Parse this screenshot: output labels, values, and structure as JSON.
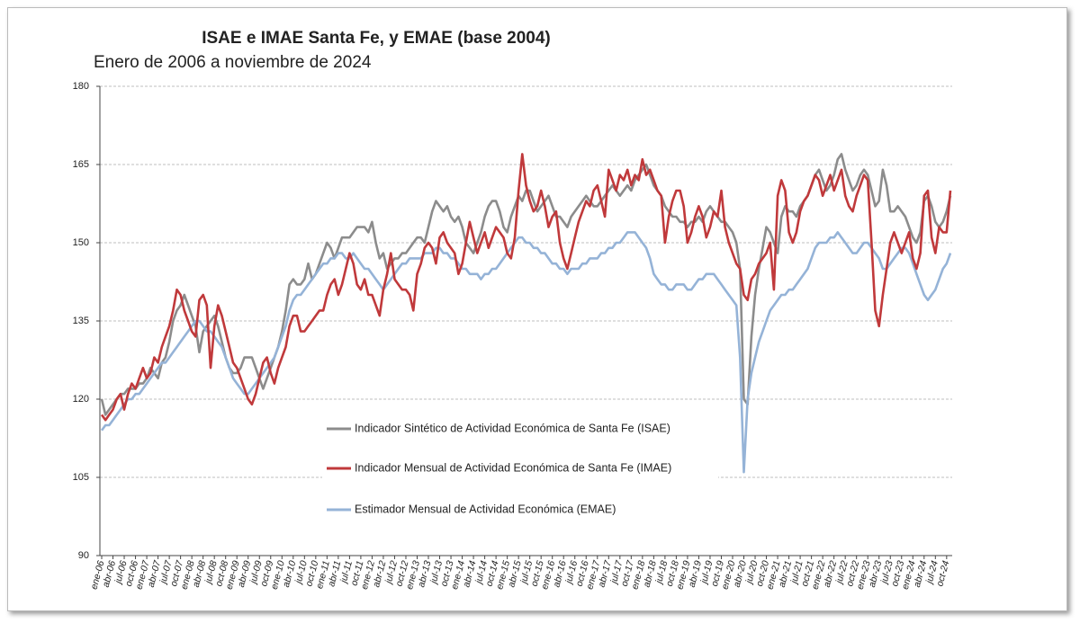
{
  "chart_data": {
    "type": "line",
    "title": "ISAE e IMAE Santa Fe, y EMAE (base 2004)",
    "subtitle": "Enero de 2006 a noviembre de 2024",
    "ylim": [
      90,
      180
    ],
    "yticks": [
      90,
      105,
      120,
      135,
      150,
      165,
      180
    ],
    "grid": true,
    "categories": [
      "ene-06",
      null,
      null,
      "abr-06",
      null,
      null,
      "jul-06",
      null,
      null,
      "oct-06",
      null,
      null,
      "ene-07",
      null,
      null,
      "abr-07",
      null,
      null,
      "jul-07",
      null,
      null,
      "oct-07",
      null,
      null,
      "ene-08",
      null,
      null,
      "abr-08",
      null,
      null,
      "jul-08",
      null,
      null,
      "oct-08",
      null,
      null,
      "ene-09",
      null,
      null,
      "abr-09",
      null,
      null,
      "jul-09",
      null,
      null,
      "oct-09",
      null,
      null,
      "ene-10",
      null,
      null,
      "abr-10",
      null,
      null,
      "jul-10",
      null,
      null,
      "oct-10",
      null,
      null,
      "ene-11",
      null,
      null,
      "abr-11",
      null,
      null,
      "jul-11",
      null,
      null,
      "oct-11",
      null,
      null,
      "ene-12",
      null,
      null,
      "abr-12",
      null,
      null,
      "jul-12",
      null,
      null,
      "oct-12",
      null,
      null,
      "ene-13",
      null,
      null,
      "abr-13",
      null,
      null,
      "jul-13",
      null,
      null,
      "oct-13",
      null,
      null,
      "ene-14",
      null,
      null,
      "abr-14",
      null,
      null,
      "jul-14",
      null,
      null,
      "oct-14",
      null,
      null,
      "ene-15",
      null,
      null,
      "abr-15",
      null,
      null,
      "jul-15",
      null,
      null,
      "oct-15",
      null,
      null,
      "ene-16",
      null,
      null,
      "abr-16",
      null,
      null,
      "jul-16",
      null,
      null,
      "oct-16",
      null,
      null,
      "ene-17",
      null,
      null,
      "abr-17",
      null,
      null,
      "jul-17",
      null,
      null,
      "oct-17",
      null,
      null,
      "ene-18",
      null,
      null,
      "abr-18",
      null,
      null,
      "jul-18",
      null,
      null,
      "oct-18",
      null,
      null,
      "ene-19",
      null,
      null,
      "abr-19",
      null,
      null,
      "jul-19",
      null,
      null,
      "oct-19",
      null,
      null,
      "ene-20",
      null,
      null,
      "abr-20",
      null,
      null,
      "jul-20",
      null,
      null,
      "oct-20",
      null,
      null,
      "ene-21",
      null,
      null,
      "abr-21",
      null,
      null,
      "jul-21",
      null,
      null,
      "oct-21",
      null,
      null,
      "ene-22",
      null,
      null,
      "abr-22",
      null,
      null,
      "jul-22",
      null,
      null,
      "oct-22",
      null,
      null,
      "ene-23",
      null,
      null,
      "abr-23",
      null,
      null,
      "jul-23",
      null,
      null,
      "oct-23",
      null,
      null,
      "ene-24",
      null,
      null,
      "abr-24",
      null,
      null,
      "jul-24",
      null,
      null,
      "oct-24",
      null
    ],
    "series": [
      {
        "name": "Indicador Sintético de Actividad Económica de Santa Fe (ISAE)",
        "color": "#8c8c8c",
        "values": [
          120,
          117,
          118,
          119,
          120,
          121,
          121,
          122,
          122,
          122,
          123,
          123,
          124,
          126,
          125,
          124,
          127,
          128,
          131,
          135,
          137,
          138,
          140,
          138,
          136,
          134,
          129,
          133,
          134,
          135,
          136,
          134,
          131,
          128,
          126,
          125,
          125,
          126,
          128,
          128,
          128,
          126,
          124,
          122,
          124,
          126,
          128,
          130,
          133,
          137,
          142,
          143,
          142,
          142,
          143,
          146,
          143,
          144,
          146,
          148,
          150,
          149,
          147,
          149,
          151,
          151,
          151,
          152,
          153,
          153,
          153,
          152,
          154,
          150,
          147,
          148,
          145,
          146,
          147,
          147,
          148,
          148,
          149,
          150,
          151,
          151,
          150,
          153,
          156,
          158,
          157,
          156,
          157,
          155,
          154,
          155,
          153,
          150,
          149,
          148,
          150,
          152,
          155,
          157,
          158,
          158,
          156,
          153,
          152,
          155,
          157,
          159,
          158,
          160,
          160,
          158,
          156,
          157,
          158,
          159,
          157,
          155,
          155,
          154,
          153,
          155,
          156,
          157,
          158,
          159,
          158,
          157,
          157,
          158,
          159,
          160,
          161,
          160,
          159,
          160,
          161,
          160,
          162,
          163,
          164,
          165,
          163,
          161,
          160,
          159,
          157,
          156,
          155,
          155,
          154,
          154,
          153,
          154,
          154,
          155,
          154,
          156,
          157,
          156,
          155,
          154,
          154,
          153,
          152,
          150,
          145,
          120,
          119,
          132,
          140,
          145,
          149,
          153,
          152,
          150,
          148,
          155,
          157,
          156,
          156,
          155,
          157,
          158,
          159,
          161,
          163,
          164,
          162,
          160,
          161,
          163,
          166,
          167,
          164,
          162,
          160,
          161,
          163,
          164,
          163,
          160,
          157,
          158,
          164,
          161,
          156,
          156,
          157,
          156,
          155,
          153,
          151,
          150,
          152,
          158,
          159,
          157,
          154,
          153,
          154,
          156,
          159
        ]
      },
      {
        "name": "Indicador Mensual de Actividad Económica de Santa Fe (IMAE)",
        "color": "#c0393b",
        "values": [
          117,
          116,
          117,
          118,
          120,
          121,
          118,
          121,
          123,
          122,
          124,
          126,
          124,
          125,
          128,
          127,
          130,
          132,
          134,
          137,
          141,
          140,
          137,
          135,
          133,
          132,
          139,
          140,
          138,
          126,
          134,
          138,
          136,
          133,
          130,
          127,
          126,
          124,
          122,
          120,
          119,
          121,
          124,
          127,
          128,
          125,
          123,
          126,
          128,
          130,
          134,
          136,
          136,
          133,
          133,
          134,
          135,
          136,
          137,
          137,
          140,
          142,
          143,
          140,
          142,
          145,
          148,
          146,
          142,
          141,
          143,
          140,
          140,
          138,
          136,
          141,
          144,
          148,
          143,
          142,
          141,
          141,
          140,
          137,
          144,
          146,
          149,
          150,
          149,
          146,
          151,
          152,
          150,
          149,
          148,
          144,
          146,
          150,
          154,
          151,
          148,
          150,
          152,
          149,
          151,
          153,
          152,
          151,
          148,
          147,
          151,
          160,
          167,
          161,
          158,
          156,
          157,
          160,
          157,
          153,
          155,
          156,
          150,
          147,
          145,
          148,
          151,
          154,
          156,
          158,
          157,
          160,
          161,
          158,
          155,
          164,
          162,
          160,
          163,
          162,
          164,
          161,
          163,
          162,
          166,
          163,
          164,
          162,
          160,
          159,
          150,
          155,
          158,
          160,
          160,
          157,
          150,
          152,
          155,
          157,
          155,
          151,
          153,
          156,
          155,
          160,
          153,
          150,
          148,
          146,
          145,
          140,
          139,
          143,
          144,
          146,
          147,
          148,
          150,
          141,
          159,
          162,
          160,
          152,
          150,
          152,
          156,
          158,
          159,
          161,
          163,
          162,
          159,
          161,
          163,
          160,
          162,
          164,
          159,
          157,
          156,
          159,
          161,
          163,
          162,
          150,
          137,
          134,
          140,
          145,
          150,
          152,
          150,
          148,
          150,
          152,
          147,
          145,
          148,
          159,
          160,
          151,
          148,
          153,
          152,
          152,
          160
        ]
      },
      {
        "name": "Estimador Mensual de Actividad Económica (EMAE)",
        "color": "#95b3d7",
        "values": [
          114,
          115,
          115,
          116,
          117,
          118,
          119,
          120,
          120,
          121,
          121,
          122,
          123,
          124,
          125,
          126,
          127,
          127,
          128,
          129,
          130,
          131,
          132,
          133,
          134,
          135,
          135,
          134,
          133,
          133,
          132,
          131,
          130,
          128,
          126,
          124,
          123,
          122,
          121,
          121,
          122,
          123,
          124,
          125,
          126,
          127,
          128,
          130,
          132,
          134,
          137,
          139,
          140,
          140,
          141,
          142,
          143,
          144,
          145,
          146,
          146,
          147,
          147,
          148,
          148,
          147,
          147,
          148,
          147,
          146,
          145,
          145,
          144,
          143,
          142,
          141,
          142,
          143,
          144,
          145,
          146,
          146,
          147,
          147,
          147,
          147,
          148,
          148,
          148,
          149,
          149,
          148,
          148,
          147,
          147,
          146,
          145,
          145,
          144,
          144,
          144,
          143,
          144,
          144,
          145,
          145,
          146,
          147,
          148,
          149,
          150,
          151,
          151,
          150,
          150,
          149,
          149,
          148,
          148,
          147,
          146,
          146,
          145,
          145,
          144,
          145,
          145,
          145,
          146,
          146,
          147,
          147,
          147,
          148,
          148,
          149,
          149,
          150,
          150,
          151,
          152,
          152,
          152,
          151,
          150,
          149,
          147,
          144,
          143,
          142,
          142,
          141,
          141,
          142,
          142,
          142,
          141,
          141,
          142,
          143,
          143,
          144,
          144,
          144,
          143,
          142,
          141,
          140,
          139,
          138,
          128,
          106,
          120,
          125,
          128,
          131,
          133,
          135,
          137,
          138,
          139,
          140,
          140,
          141,
          141,
          142,
          143,
          144,
          145,
          147,
          149,
          150,
          150,
          150,
          151,
          151,
          152,
          151,
          150,
          149,
          148,
          148,
          149,
          150,
          150,
          149,
          148,
          147,
          145,
          145,
          146,
          147,
          148,
          149,
          149,
          148,
          146,
          144,
          142,
          140,
          139,
          140,
          141,
          143,
          145,
          146,
          148
        ]
      }
    ]
  }
}
